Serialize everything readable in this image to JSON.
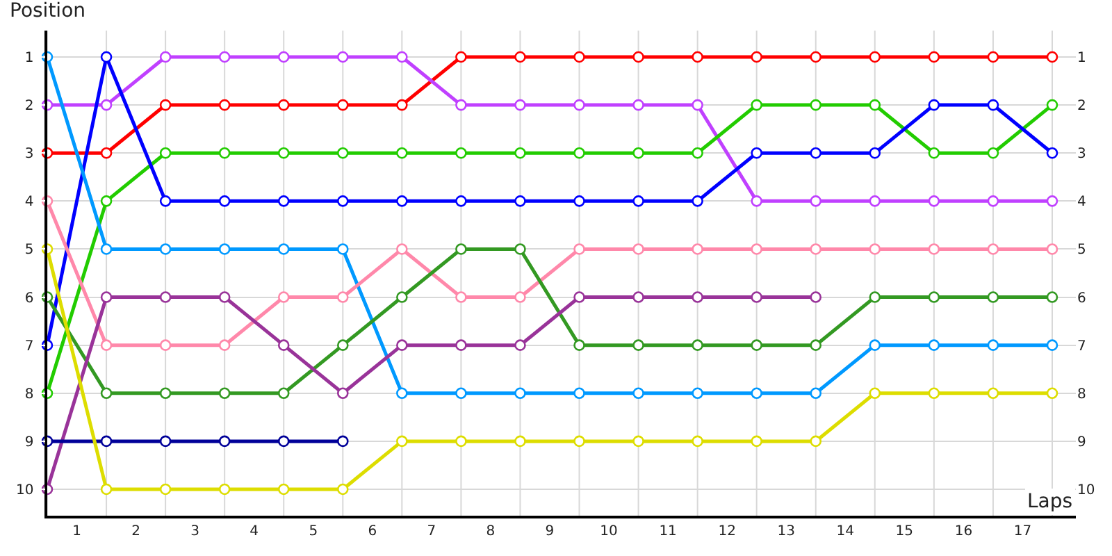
{
  "chart_data": {
    "type": "line",
    "xlabel": "Laps",
    "ylabel": "Position",
    "x": [
      0,
      1,
      2,
      3,
      4,
      5,
      6,
      7,
      8,
      9,
      10,
      11,
      12,
      13,
      14,
      15,
      16,
      17
    ],
    "series": [
      {
        "color": "#ff0000",
        "values": [
          3,
          3,
          2,
          2,
          2,
          2,
          2,
          1,
          1,
          1,
          1,
          1,
          1,
          1,
          1,
          1,
          1,
          1
        ]
      },
      {
        "color": "#c040ff",
        "values": [
          2,
          2,
          1,
          1,
          1,
          1,
          1,
          2,
          2,
          2,
          2,
          2,
          4,
          4,
          4,
          4,
          4,
          4
        ]
      },
      {
        "color": "#22cc00",
        "values": [
          8,
          4,
          3,
          3,
          3,
          3,
          3,
          3,
          3,
          3,
          3,
          3,
          2,
          2,
          2,
          3,
          3,
          2
        ]
      },
      {
        "color": "#0000ff",
        "values": [
          7,
          1,
          4,
          4,
          4,
          4,
          4,
          4,
          4,
          4,
          4,
          4,
          3,
          3,
          3,
          2,
          2,
          3
        ]
      },
      {
        "color": "#0099ff",
        "values": [
          1,
          5,
          5,
          5,
          5,
          5,
          8,
          8,
          8,
          8,
          8,
          8,
          8,
          8,
          7,
          7,
          7,
          7
        ]
      },
      {
        "color": "#ff88aa",
        "values": [
          4,
          7,
          7,
          7,
          6,
          6,
          5,
          6,
          6,
          5,
          5,
          5,
          5,
          5,
          5,
          5,
          5,
          5
        ]
      },
      {
        "color": "#339922",
        "values": [
          6,
          8,
          8,
          8,
          8,
          7,
          6,
          5,
          5,
          7,
          7,
          7,
          7,
          7,
          6,
          6,
          6,
          6
        ]
      },
      {
        "color": "#993399",
        "values": [
          10,
          6,
          6,
          6,
          7,
          8,
          7,
          7,
          7,
          6,
          6,
          6,
          6,
          6,
          null,
          null,
          null,
          null
        ]
      },
      {
        "color": "#000099",
        "values": [
          9,
          9,
          9,
          9,
          9,
          9,
          null,
          null,
          null,
          null,
          null,
          null,
          null,
          null,
          null,
          null,
          null,
          null
        ]
      },
      {
        "color": "#dddd00",
        "values": [
          5,
          10,
          10,
          10,
          10,
          10,
          9,
          9,
          9,
          9,
          9,
          9,
          9,
          9,
          8,
          8,
          8,
          8
        ]
      }
    ],
    "xlim": [
      0,
      17.4
    ],
    "xticks": [
      {
        "value": 0,
        "label": null
      },
      {
        "value": 0.5,
        "label": "1"
      },
      {
        "value": 1,
        "label": null
      },
      {
        "value": 1.5,
        "label": "2"
      },
      {
        "value": 2,
        "label": null
      },
      {
        "value": 2.5,
        "label": "3"
      },
      {
        "value": 3,
        "label": null
      },
      {
        "value": 3.5,
        "label": "4"
      },
      {
        "value": 4,
        "label": null
      },
      {
        "value": 4.5,
        "label": "5"
      },
      {
        "value": 5,
        "label": null
      },
      {
        "value": 5.5,
        "label": "6"
      },
      {
        "value": 6,
        "label": null
      },
      {
        "value": 6.5,
        "label": "7"
      },
      {
        "value": 7,
        "label": null
      },
      {
        "value": 7.5,
        "label": "8"
      },
      {
        "value": 8,
        "label": null
      },
      {
        "value": 8.5,
        "label": "9"
      },
      {
        "value": 9,
        "label": null
      },
      {
        "value": 9.5,
        "label": "10"
      },
      {
        "value": 10,
        "label": null
      },
      {
        "value": 10.5,
        "label": "11"
      },
      {
        "value": 11,
        "label": null
      },
      {
        "value": 11.5,
        "label": "12"
      },
      {
        "value": 12,
        "label": null
      },
      {
        "value": 12.5,
        "label": "13"
      },
      {
        "value": 13,
        "label": null
      },
      {
        "value": 13.5,
        "label": "14"
      },
      {
        "value": 14,
        "label": null
      },
      {
        "value": 14.5,
        "label": "15"
      },
      {
        "value": 15,
        "label": null
      },
      {
        "value": 15.5,
        "label": "16"
      },
      {
        "value": 16,
        "label": null
      },
      {
        "value": 16.5,
        "label": "17"
      },
      {
        "value": 17,
        "label": null
      }
    ],
    "ylim": [
      10.55,
      0.45
    ],
    "yticks": [
      1,
      2,
      3,
      4,
      5,
      6,
      7,
      8,
      9,
      10
    ],
    "y2lim": [
      10.55,
      0.45
    ],
    "y2ticks": [
      1,
      2,
      3,
      4,
      5,
      6,
      7,
      8,
      9,
      10
    ],
    "grid": true,
    "marker": "circle",
    "line_style": "solid"
  }
}
